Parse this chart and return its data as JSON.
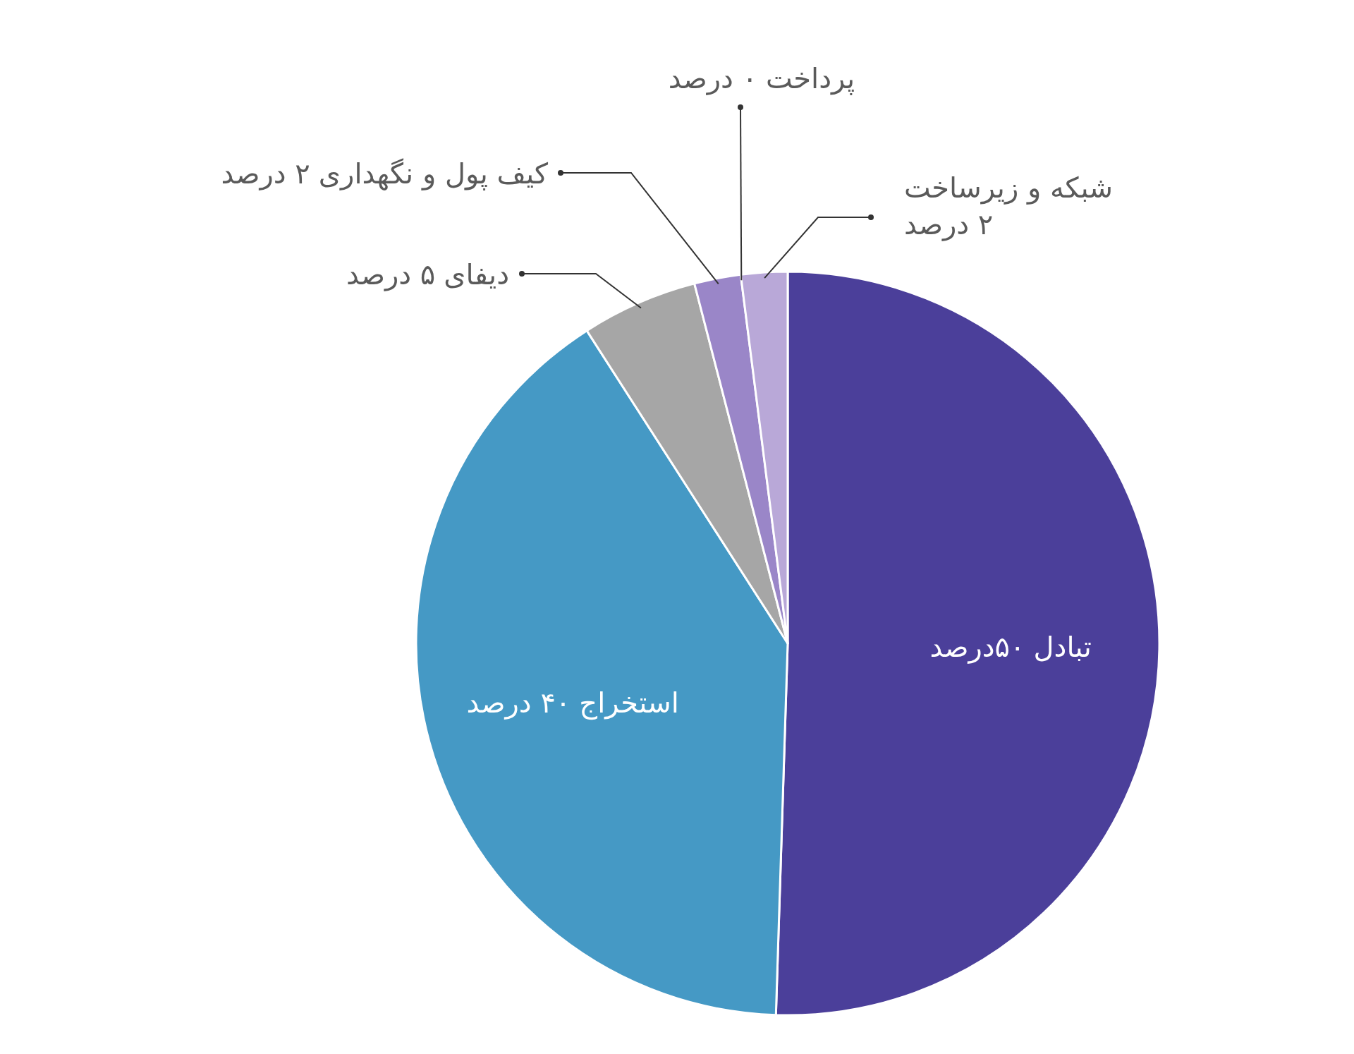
{
  "chart_data": {
    "type": "pie",
    "categories": [
      "تبادل",
      "استخراج",
      "دیفای",
      "کیف پول و نگهداری",
      "پرداخت",
      "شبکه و زیرساخت"
    ],
    "values": [
      50,
      40,
      5,
      2,
      0,
      2
    ],
    "value_labels": [
      "۵۰درصد",
      "۴۰ درصد",
      "۵ درصد",
      "۲ درصد",
      "۰ درصد",
      "۲ درصد"
    ],
    "colors": [
      "#4b3f9a",
      "#4599c5",
      "#a6a6a6",
      "#9a86c8",
      null,
      "#b9a8d8"
    ]
  }
}
